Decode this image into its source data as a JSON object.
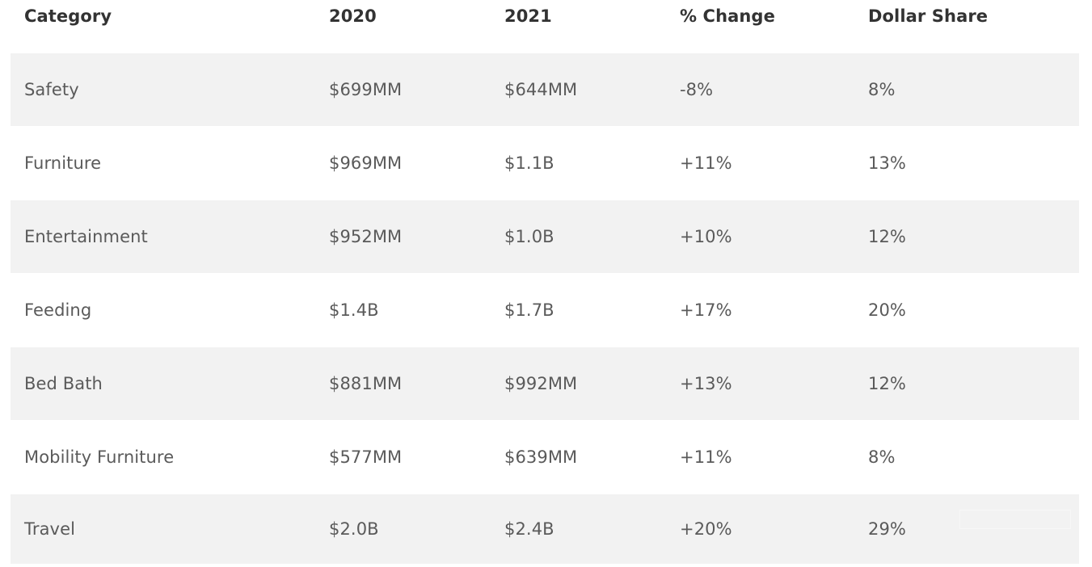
{
  "table": {
    "headers": [
      "Category",
      "2020",
      "2021",
      "% Change",
      "Dollar Share"
    ],
    "rows": [
      [
        "Safety",
        "$699MM",
        "$644MM",
        "-8%",
        "8%"
      ],
      [
        "Furniture",
        "$969MM",
        "$1.1B",
        "+11%",
        "13%"
      ],
      [
        "Entertainment",
        "$952MM",
        "$1.0B",
        "+10%",
        "12%"
      ],
      [
        "Feeding",
        "$1.4B",
        "$1.7B",
        "+17%",
        "20%"
      ],
      [
        "Bed Bath",
        "$881MM",
        "$992MM",
        "+13%",
        "12%"
      ],
      [
        "Mobility Furniture",
        "$577MM",
        "$639MM",
        "+11%",
        "8%"
      ],
      [
        "Travel",
        "$2.0B",
        "$2.4B",
        "+20%",
        "29%"
      ]
    ]
  },
  "colors": {
    "shaded_row": "#f2f2f2",
    "header_text": "#333333",
    "body_text": "#5a5a5a"
  }
}
